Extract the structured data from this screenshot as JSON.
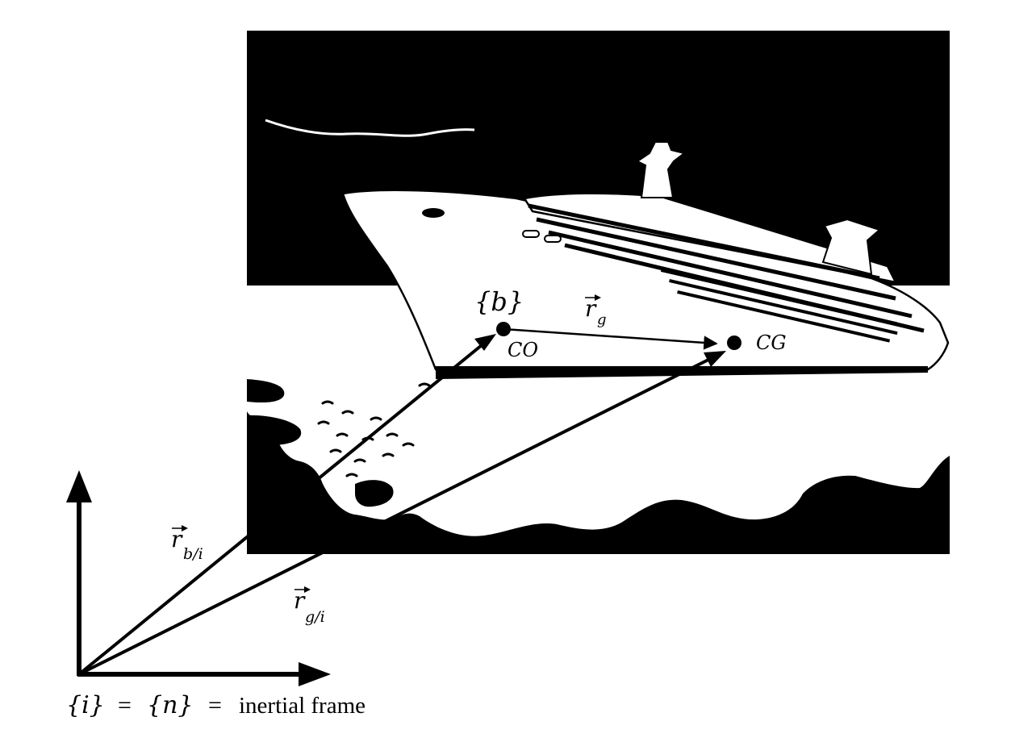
{
  "figure": {
    "colors": {
      "ink": "#000000",
      "paper": "#ffffff"
    },
    "labels": {
      "body_frame": "{b}",
      "r_g_symbol": "r",
      "r_g_subscript": "g",
      "co": "CO",
      "cg": "CG",
      "r_bi_symbol": "r",
      "r_bi_subscript": "b/i",
      "r_gi_symbol": "r",
      "r_gi_subscript": "g/i"
    },
    "caption": {
      "i": "{i}",
      "eq1": "=",
      "n": "{n}",
      "eq2": "=",
      "text": "inertial frame"
    }
  }
}
